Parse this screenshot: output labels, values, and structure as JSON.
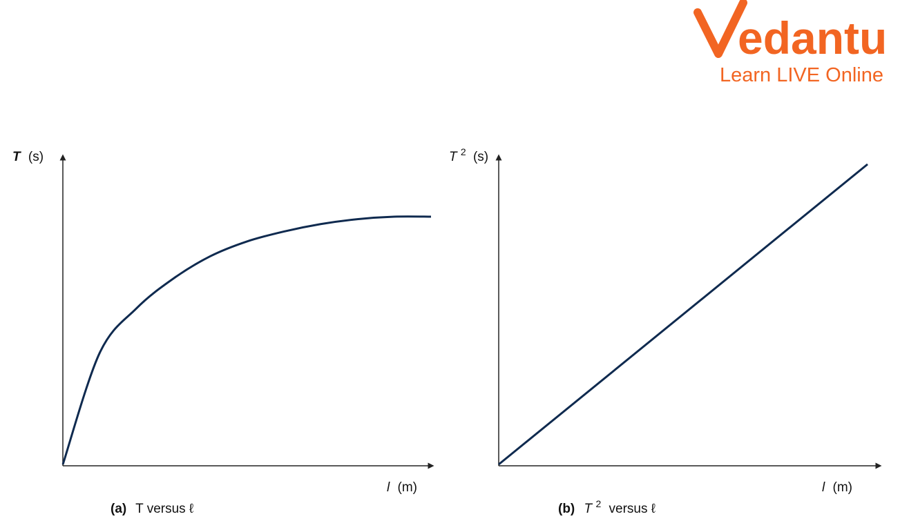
{
  "brand": {
    "name": "Vedantu",
    "tagline": "Learn LIVE Online",
    "color": "#f26522"
  },
  "curve_color": "#0f2a4f",
  "chart_data": [
    {
      "type": "line",
      "caption_tag": "(a)",
      "caption_rest": "T versus ℓ",
      "ylabel_main": "T",
      "ylabel_sup": "",
      "ylabel_unit": "(s)",
      "xlabel_main": "l",
      "xlabel_unit": "(m)",
      "grid": false,
      "shape": "concave, rising and levelling off (square-root-like)",
      "x": [
        0,
        1,
        2,
        3,
        4,
        5,
        6,
        7,
        8,
        9,
        10
      ],
      "y": [
        0,
        0.45,
        0.63,
        0.75,
        0.84,
        0.9,
        0.94,
        0.97,
        0.99,
        1.0,
        1.0
      ]
    },
    {
      "type": "line",
      "caption_tag": "(b)",
      "caption_rest": "versus ℓ",
      "caption_T": "T",
      "caption_sup": "2",
      "ylabel_main": "T",
      "ylabel_sup": "2",
      "ylabel_unit": "(s)",
      "xlabel_main": "l",
      "xlabel_unit": "(m)",
      "grid": false,
      "shape": "straight line through origin",
      "x": [
        0,
        10
      ],
      "y": [
        0,
        10
      ]
    }
  ]
}
